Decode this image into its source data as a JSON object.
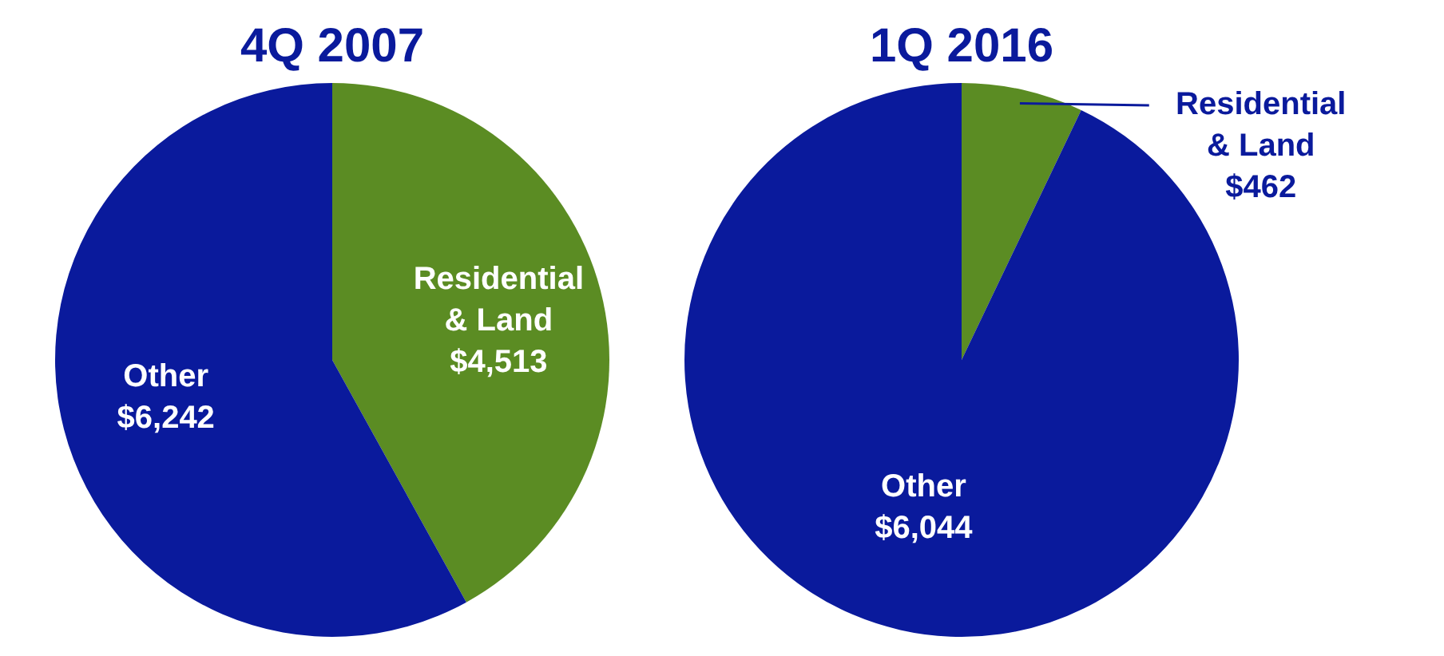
{
  "chart_data": [
    {
      "type": "pie",
      "title": "4Q 2007",
      "categories": [
        "Residential & Land",
        "Other"
      ],
      "values": [
        4513,
        6242
      ],
      "colors": [
        "#5b8c23",
        "#0a1a9c"
      ],
      "value_labels": [
        "$4,513",
        "$6,242"
      ],
      "legend": false
    },
    {
      "type": "pie",
      "title": "1Q 2016",
      "categories": [
        "Residential & Land",
        "Other"
      ],
      "values": [
        462,
        6044
      ],
      "colors": [
        "#5b8c23",
        "#0a1a9c"
      ],
      "value_labels": [
        "$462",
        "$6,044"
      ],
      "legend": false
    }
  ]
}
